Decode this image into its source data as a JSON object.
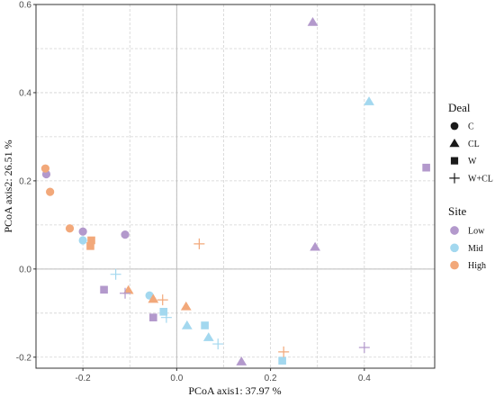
{
  "chart_data": {
    "type": "scatter",
    "title": "",
    "xlabel": "PCoA axis1:  37.97 %",
    "ylabel": "PCoA axis2:  26.51   %",
    "xlim": [
      -0.3,
      0.55
    ],
    "ylim": [
      -0.225,
      0.6
    ],
    "xticks": [
      -0.2,
      0.0,
      0.2,
      0.4
    ],
    "xtick_labels": [
      "-0.2",
      "0.0",
      "0.2",
      "0.4"
    ],
    "yticks": [
      -0.2,
      0.0,
      0.2,
      0.4,
      0.6
    ],
    "ytick_labels": [
      "-0.2",
      "0.0",
      "0.2",
      "0.4",
      "0.6"
    ],
    "grid": true,
    "reference_lines": {
      "x": 0,
      "y": 0
    },
    "legend_position": "right",
    "legends": [
      {
        "title": "Deal",
        "items": [
          {
            "label": "C",
            "shape": "circle"
          },
          {
            "label": "CL",
            "shape": "triangle"
          },
          {
            "label": "W",
            "shape": "square"
          },
          {
            "label": "W+CL",
            "shape": "plus"
          }
        ]
      },
      {
        "title": "Site",
        "items": [
          {
            "label": "Low",
            "color": "#b399cc"
          },
          {
            "label": "Mid",
            "color": "#a3d8ef"
          },
          {
            "label": "High",
            "color": "#f2a87a"
          }
        ]
      }
    ],
    "colors": {
      "Low": "#b399cc",
      "Mid": "#a3d8ef",
      "High": "#f2a87a"
    },
    "points": [
      {
        "x": -0.278,
        "y": 0.215,
        "deal": "C",
        "site": "Low"
      },
      {
        "x": -0.2,
        "y": 0.085,
        "deal": "C",
        "site": "Low"
      },
      {
        "x": -0.11,
        "y": 0.078,
        "deal": "C",
        "site": "Low"
      },
      {
        "x": -0.2,
        "y": 0.065,
        "deal": "C",
        "site": "Mid"
      },
      {
        "x": -0.058,
        "y": -0.06,
        "deal": "C",
        "site": "Mid"
      },
      {
        "x": -0.28,
        "y": 0.228,
        "deal": "C",
        "site": "High"
      },
      {
        "x": -0.27,
        "y": 0.175,
        "deal": "C",
        "site": "High"
      },
      {
        "x": -0.228,
        "y": 0.092,
        "deal": "C",
        "site": "High"
      },
      {
        "x": 0.29,
        "y": 0.56,
        "deal": "CL",
        "site": "Low"
      },
      {
        "x": 0.295,
        "y": 0.05,
        "deal": "CL",
        "site": "Low"
      },
      {
        "x": 0.138,
        "y": -0.21,
        "deal": "CL",
        "site": "Low"
      },
      {
        "x": 0.41,
        "y": 0.38,
        "deal": "CL",
        "site": "Mid"
      },
      {
        "x": 0.022,
        "y": -0.128,
        "deal": "CL",
        "site": "Mid"
      },
      {
        "x": 0.068,
        "y": -0.155,
        "deal": "CL",
        "site": "Mid"
      },
      {
        "x": -0.103,
        "y": -0.048,
        "deal": "CL",
        "site": "High"
      },
      {
        "x": -0.05,
        "y": -0.068,
        "deal": "CL",
        "site": "High"
      },
      {
        "x": 0.02,
        "y": -0.085,
        "deal": "CL",
        "site": "High"
      },
      {
        "x": 0.532,
        "y": 0.23,
        "deal": "W",
        "site": "Low"
      },
      {
        "x": -0.155,
        "y": -0.047,
        "deal": "W",
        "site": "Low"
      },
      {
        "x": -0.05,
        "y": -0.11,
        "deal": "W",
        "site": "Low"
      },
      {
        "x": -0.028,
        "y": -0.097,
        "deal": "W",
        "site": "Mid"
      },
      {
        "x": 0.06,
        "y": -0.128,
        "deal": "W",
        "site": "Mid"
      },
      {
        "x": 0.225,
        "y": -0.208,
        "deal": "W",
        "site": "Mid"
      },
      {
        "x": -0.182,
        "y": 0.065,
        "deal": "W",
        "site": "High"
      },
      {
        "x": -0.184,
        "y": 0.052,
        "deal": "W",
        "site": "High"
      },
      {
        "x": -0.11,
        "y": -0.055,
        "deal": "W+CL",
        "site": "Low"
      },
      {
        "x": 0.4,
        "y": -0.178,
        "deal": "W+CL",
        "site": "Low"
      },
      {
        "x": -0.13,
        "y": -0.012,
        "deal": "W+CL",
        "site": "Mid"
      },
      {
        "x": -0.022,
        "y": -0.11,
        "deal": "W+CL",
        "site": "Mid"
      },
      {
        "x": 0.088,
        "y": -0.17,
        "deal": "W+CL",
        "site": "Mid"
      },
      {
        "x": 0.048,
        "y": 0.057,
        "deal": "W+CL",
        "site": "High"
      },
      {
        "x": -0.03,
        "y": -0.07,
        "deal": "W+CL",
        "site": "High"
      },
      {
        "x": 0.228,
        "y": -0.188,
        "deal": "W+CL",
        "site": "High"
      }
    ]
  }
}
